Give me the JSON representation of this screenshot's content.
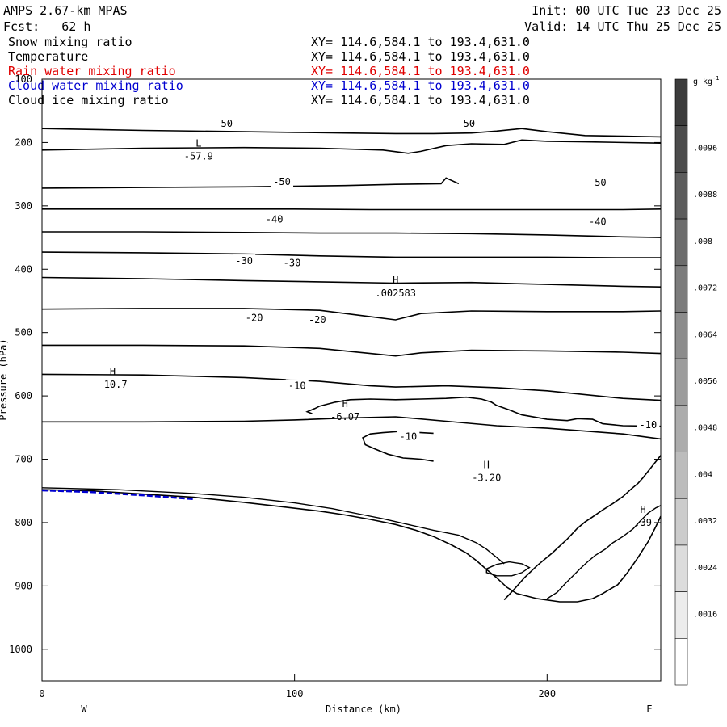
{
  "header": {
    "model": "AMPS 2.67-km MPAS",
    "forecast": "Fcst:   62 h",
    "init": "Init: 00 UTC Tue 23 Dec 25",
    "valid": "Valid: 14 UTC Thu 25 Dec 25"
  },
  "legend": [
    {
      "label": "Snow mixing ratio",
      "xy": "XY= 114.6,584.1 to 193.4,631.0",
      "color": "#000000"
    },
    {
      "label": "Temperature",
      "xy": "XY= 114.6,584.1 to 193.4,631.0",
      "color": "#000000"
    },
    {
      "label": "Rain water mixing ratio",
      "xy": "XY= 114.6,584.1 to 193.4,631.0",
      "color": "#e00000"
    },
    {
      "label": "Cloud water mixing ratio",
      "xy": "XY= 114.6,584.1 to 193.4,631.0",
      "color": "#0000d0"
    },
    {
      "label": "Cloud ice mixing ratio",
      "xy": "XY= 114.6,584.1 to 193.4,631.0",
      "color": "#000000"
    }
  ],
  "chart_data": {
    "type": "contour-cross-section",
    "xlabel": "Distance (km)",
    "ylabel": "Pressure (hPa)",
    "xlim": [
      0,
      245
    ],
    "ylim": [
      1050,
      100
    ],
    "x_ticks": [
      "0",
      "100",
      "200"
    ],
    "y_ticks": [
      "100",
      "200",
      "300",
      "400",
      "500",
      "600",
      "700",
      "800",
      "900",
      "1000"
    ],
    "west_label": "W",
    "east_label": "E",
    "colorbar": {
      "unit_base": "g kg",
      "unit_exp": "-1",
      "labels": [
        ".0096",
        ".0088",
        ".008",
        ".0072",
        ".0064",
        ".0056",
        ".0048",
        ".004",
        ".0032",
        ".0024",
        ".0016"
      ],
      "colors": [
        "#3c3c3c",
        "#4c4c4c",
        "#5c5c5c",
        "#6c6c6c",
        "#7c7c7c",
        "#8c8c8c",
        "#9c9c9c",
        "#acacac",
        "#bcbcbc",
        "#cccccc",
        "#dcdcdc",
        "#ececec",
        "#ffffff"
      ]
    },
    "isotherms": [
      {
        "points": [
          [
            0,
            178
          ],
          [
            40,
            181
          ],
          [
            80,
            183
          ],
          [
            100,
            184
          ],
          [
            120,
            185
          ],
          [
            140,
            186
          ],
          [
            155,
            186
          ],
          [
            170,
            185
          ],
          [
            180,
            182
          ],
          [
            190,
            178
          ],
          [
            200,
            183
          ],
          [
            215,
            189
          ],
          [
            230,
            190
          ],
          [
            245,
            191
          ]
        ]
      },
      {
        "points": [
          [
            0,
            212
          ],
          [
            40,
            209
          ],
          [
            80,
            208
          ],
          [
            110,
            209
          ],
          [
            135,
            212
          ],
          [
            145,
            217
          ],
          [
            150,
            214
          ],
          [
            160,
            205
          ],
          [
            170,
            202
          ],
          [
            183,
            203
          ],
          [
            190,
            196
          ],
          [
            200,
            198
          ],
          [
            215,
            199
          ],
          [
            245,
            201
          ]
        ]
      },
      {
        "points": [
          [
            0,
            272
          ],
          [
            40,
            271
          ],
          [
            80,
            270
          ],
          [
            120,
            268
          ],
          [
            140,
            266
          ],
          [
            158,
            265
          ],
          [
            160,
            256
          ],
          [
            165,
            265
          ]
        ]
      },
      {
        "points": [
          [
            0,
            305
          ],
          [
            40,
            305
          ],
          [
            80,
            305
          ],
          [
            100,
            305
          ],
          [
            130,
            306
          ],
          [
            160,
            306
          ],
          [
            200,
            306
          ],
          [
            230,
            306
          ],
          [
            245,
            305
          ]
        ]
      },
      {
        "points": [
          [
            0,
            341
          ],
          [
            40,
            341
          ],
          [
            80,
            342
          ],
          [
            110,
            343
          ],
          [
            140,
            343
          ],
          [
            170,
            344
          ],
          [
            200,
            346
          ],
          [
            230,
            349
          ],
          [
            245,
            350
          ]
        ]
      },
      {
        "points": [
          [
            0,
            373
          ],
          [
            40,
            374
          ],
          [
            80,
            376
          ],
          [
            110,
            379
          ],
          [
            140,
            381
          ],
          [
            170,
            381
          ],
          [
            200,
            381
          ],
          [
            230,
            382
          ],
          [
            245,
            382
          ]
        ]
      },
      {
        "points": [
          [
            0,
            413
          ],
          [
            40,
            415
          ],
          [
            80,
            418
          ],
          [
            110,
            420
          ],
          [
            140,
            422
          ],
          [
            170,
            421
          ],
          [
            200,
            424
          ],
          [
            230,
            427
          ],
          [
            245,
            428
          ]
        ]
      },
      {
        "points": [
          [
            0,
            463
          ],
          [
            40,
            462
          ],
          [
            80,
            462
          ],
          [
            110,
            465
          ],
          [
            130,
            475
          ],
          [
            140,
            480
          ],
          [
            150,
            470
          ],
          [
            170,
            466
          ],
          [
            200,
            467
          ],
          [
            230,
            467
          ],
          [
            245,
            466
          ]
        ]
      },
      {
        "points": [
          [
            0,
            520
          ],
          [
            40,
            520
          ],
          [
            80,
            521
          ],
          [
            110,
            525
          ],
          [
            130,
            533
          ],
          [
            140,
            537
          ],
          [
            150,
            532
          ],
          [
            170,
            528
          ],
          [
            200,
            529
          ],
          [
            230,
            531
          ],
          [
            245,
            533
          ]
        ]
      },
      {
        "points": [
          [
            0,
            566
          ],
          [
            40,
            567
          ],
          [
            80,
            571
          ],
          [
            110,
            577
          ],
          [
            130,
            584
          ],
          [
            140,
            586
          ],
          [
            160,
            584
          ],
          [
            180,
            587
          ],
          [
            200,
            592
          ],
          [
            230,
            604
          ],
          [
            245,
            607
          ]
        ]
      },
      {
        "points": [
          [
            0,
            641
          ],
          [
            40,
            641
          ],
          [
            80,
            640
          ],
          [
            100,
            638
          ],
          [
            120,
            635
          ],
          [
            140,
            633
          ],
          [
            160,
            640
          ],
          [
            180,
            647
          ],
          [
            200,
            651
          ],
          [
            230,
            660
          ],
          [
            245,
            668
          ]
        ]
      }
    ],
    "warm_loop": [
      [
        107,
        628
      ],
      [
        105,
        625
      ],
      [
        108,
        620
      ],
      [
        110,
        616
      ],
      [
        116,
        610
      ],
      [
        122,
        606
      ],
      [
        130,
        605
      ],
      [
        140,
        606
      ],
      [
        150,
        605
      ],
      [
        160,
        604
      ],
      [
        168,
        602
      ],
      [
        174,
        605
      ],
      [
        178,
        610
      ],
      [
        180,
        615
      ],
      [
        185,
        622
      ],
      [
        190,
        630
      ],
      [
        200,
        637
      ],
      [
        208,
        639
      ],
      [
        212,
        636
      ],
      [
        218,
        637
      ],
      [
        222,
        644
      ],
      [
        230,
        647
      ],
      [
        245,
        648
      ]
    ],
    "cold_blob": [
      [
        155,
        703
      ],
      [
        150,
        700
      ],
      [
        143,
        698
      ],
      [
        137,
        692
      ],
      [
        132,
        684
      ],
      [
        128,
        677
      ],
      [
        127,
        666
      ],
      [
        130,
        660
      ],
      [
        135,
        658
      ],
      [
        142,
        656
      ],
      [
        150,
        658
      ],
      [
        155,
        659
      ]
    ],
    "terrain": [
      [
        0,
        748
      ],
      [
        20,
        750
      ],
      [
        40,
        755
      ],
      [
        60,
        760
      ],
      [
        80,
        768
      ],
      [
        95,
        775
      ],
      [
        110,
        782
      ],
      [
        120,
        788
      ],
      [
        130,
        795
      ],
      [
        140,
        803
      ],
      [
        148,
        812
      ],
      [
        155,
        822
      ],
      [
        162,
        835
      ],
      [
        168,
        848
      ],
      [
        172,
        860
      ],
      [
        176,
        874
      ],
      [
        180,
        887
      ],
      [
        184,
        902
      ],
      [
        188,
        912
      ],
      [
        196,
        920
      ],
      [
        205,
        925
      ],
      [
        212,
        925
      ],
      [
        218,
        920
      ],
      [
        222,
        912
      ],
      [
        228,
        898
      ],
      [
        232,
        878
      ],
      [
        236,
        855
      ],
      [
        240,
        830
      ],
      [
        243,
        807
      ],
      [
        245,
        790
      ]
    ],
    "terrain_upper": [
      [
        0,
        745
      ],
      [
        30,
        748
      ],
      [
        60,
        754
      ],
      [
        80,
        760
      ],
      [
        100,
        769
      ],
      [
        115,
        778
      ],
      [
        125,
        786
      ],
      [
        135,
        794
      ],
      [
        145,
        803
      ],
      [
        155,
        812
      ],
      [
        165,
        820
      ],
      [
        172,
        832
      ],
      [
        176,
        842
      ],
      [
        180,
        855
      ],
      [
        183,
        865
      ]
    ],
    "sfc_h": [
      [
        200,
        920
      ],
      [
        204,
        910
      ],
      [
        207,
        897
      ],
      [
        210,
        885
      ],
      [
        213,
        873
      ],
      [
        216,
        862
      ],
      [
        219,
        852
      ],
      [
        223,
        842
      ],
      [
        226,
        832
      ],
      [
        230,
        822
      ],
      [
        234,
        810
      ],
      [
        237,
        797
      ],
      [
        240,
        785
      ],
      [
        243,
        777
      ],
      [
        245,
        773
      ]
    ],
    "mountain": [
      [
        183,
        922
      ],
      [
        187,
        905
      ],
      [
        191,
        887
      ],
      [
        196,
        868
      ],
      [
        202,
        848
      ],
      [
        208,
        826
      ],
      [
        212,
        809
      ],
      [
        215,
        799
      ],
      [
        218,
        791
      ],
      [
        222,
        780
      ],
      [
        226,
        770
      ],
      [
        230,
        759
      ],
      [
        233,
        748
      ],
      [
        236,
        738
      ],
      [
        238,
        729
      ],
      [
        240,
        719
      ],
      [
        242,
        709
      ],
      [
        244,
        699
      ],
      [
        245,
        694
      ]
    ],
    "cloud_water": [
      [
        0,
        749
      ],
      [
        20,
        752
      ],
      [
        40,
        757
      ],
      [
        60,
        763
      ]
    ],
    "small_loop": [
      [
        176,
        873
      ],
      [
        180,
        866
      ],
      [
        185,
        862
      ],
      [
        190,
        865
      ],
      [
        193,
        871
      ],
      [
        190,
        879
      ],
      [
        186,
        884
      ],
      [
        180,
        884
      ],
      [
        176,
        879
      ],
      [
        176,
        873
      ]
    ],
    "labels": [
      {
        "text": "-50",
        "x": 72,
        "y": 170
      },
      {
        "text": "-50",
        "x": 168,
        "y": 170
      },
      {
        "text": "-50",
        "x": 95,
        "y": 262
      },
      {
        "text": "-50",
        "x": 220,
        "y": 263
      },
      {
        "text": "-40",
        "x": 92,
        "y": 321
      },
      {
        "text": "-40",
        "x": 220,
        "y": 325
      },
      {
        "text": "-30",
        "x": 80,
        "y": 387
      },
      {
        "text": "-30",
        "x": 99,
        "y": 390
      },
      {
        "text": "-20",
        "x": 84,
        "y": 477
      },
      {
        "text": "-20",
        "x": 109,
        "y": 480
      },
      {
        "text": "-10",
        "x": 101,
        "y": 584
      },
      {
        "text": "-10",
        "x": 145,
        "y": 664
      },
      {
        "text": "-10",
        "x": 240,
        "y": 646
      }
    ],
    "extrema": [
      {
        "mark": "L",
        "value": "-57.9",
        "x": 62,
        "y": 222
      },
      {
        "mark": "H",
        "value": ".002583",
        "x": 140,
        "y": 438
      },
      {
        "mark": "H",
        "value": "-10.7",
        "x": 28,
        "y": 582
      },
      {
        "mark": "H",
        "value": "-6.07",
        "x": 120,
        "y": 633
      },
      {
        "mark": "H",
        "value": "-3.20",
        "x": 176,
        "y": 729
      },
      {
        "mark": "H",
        "value": ".39",
        "x": 238,
        "y": 800
      }
    ]
  }
}
